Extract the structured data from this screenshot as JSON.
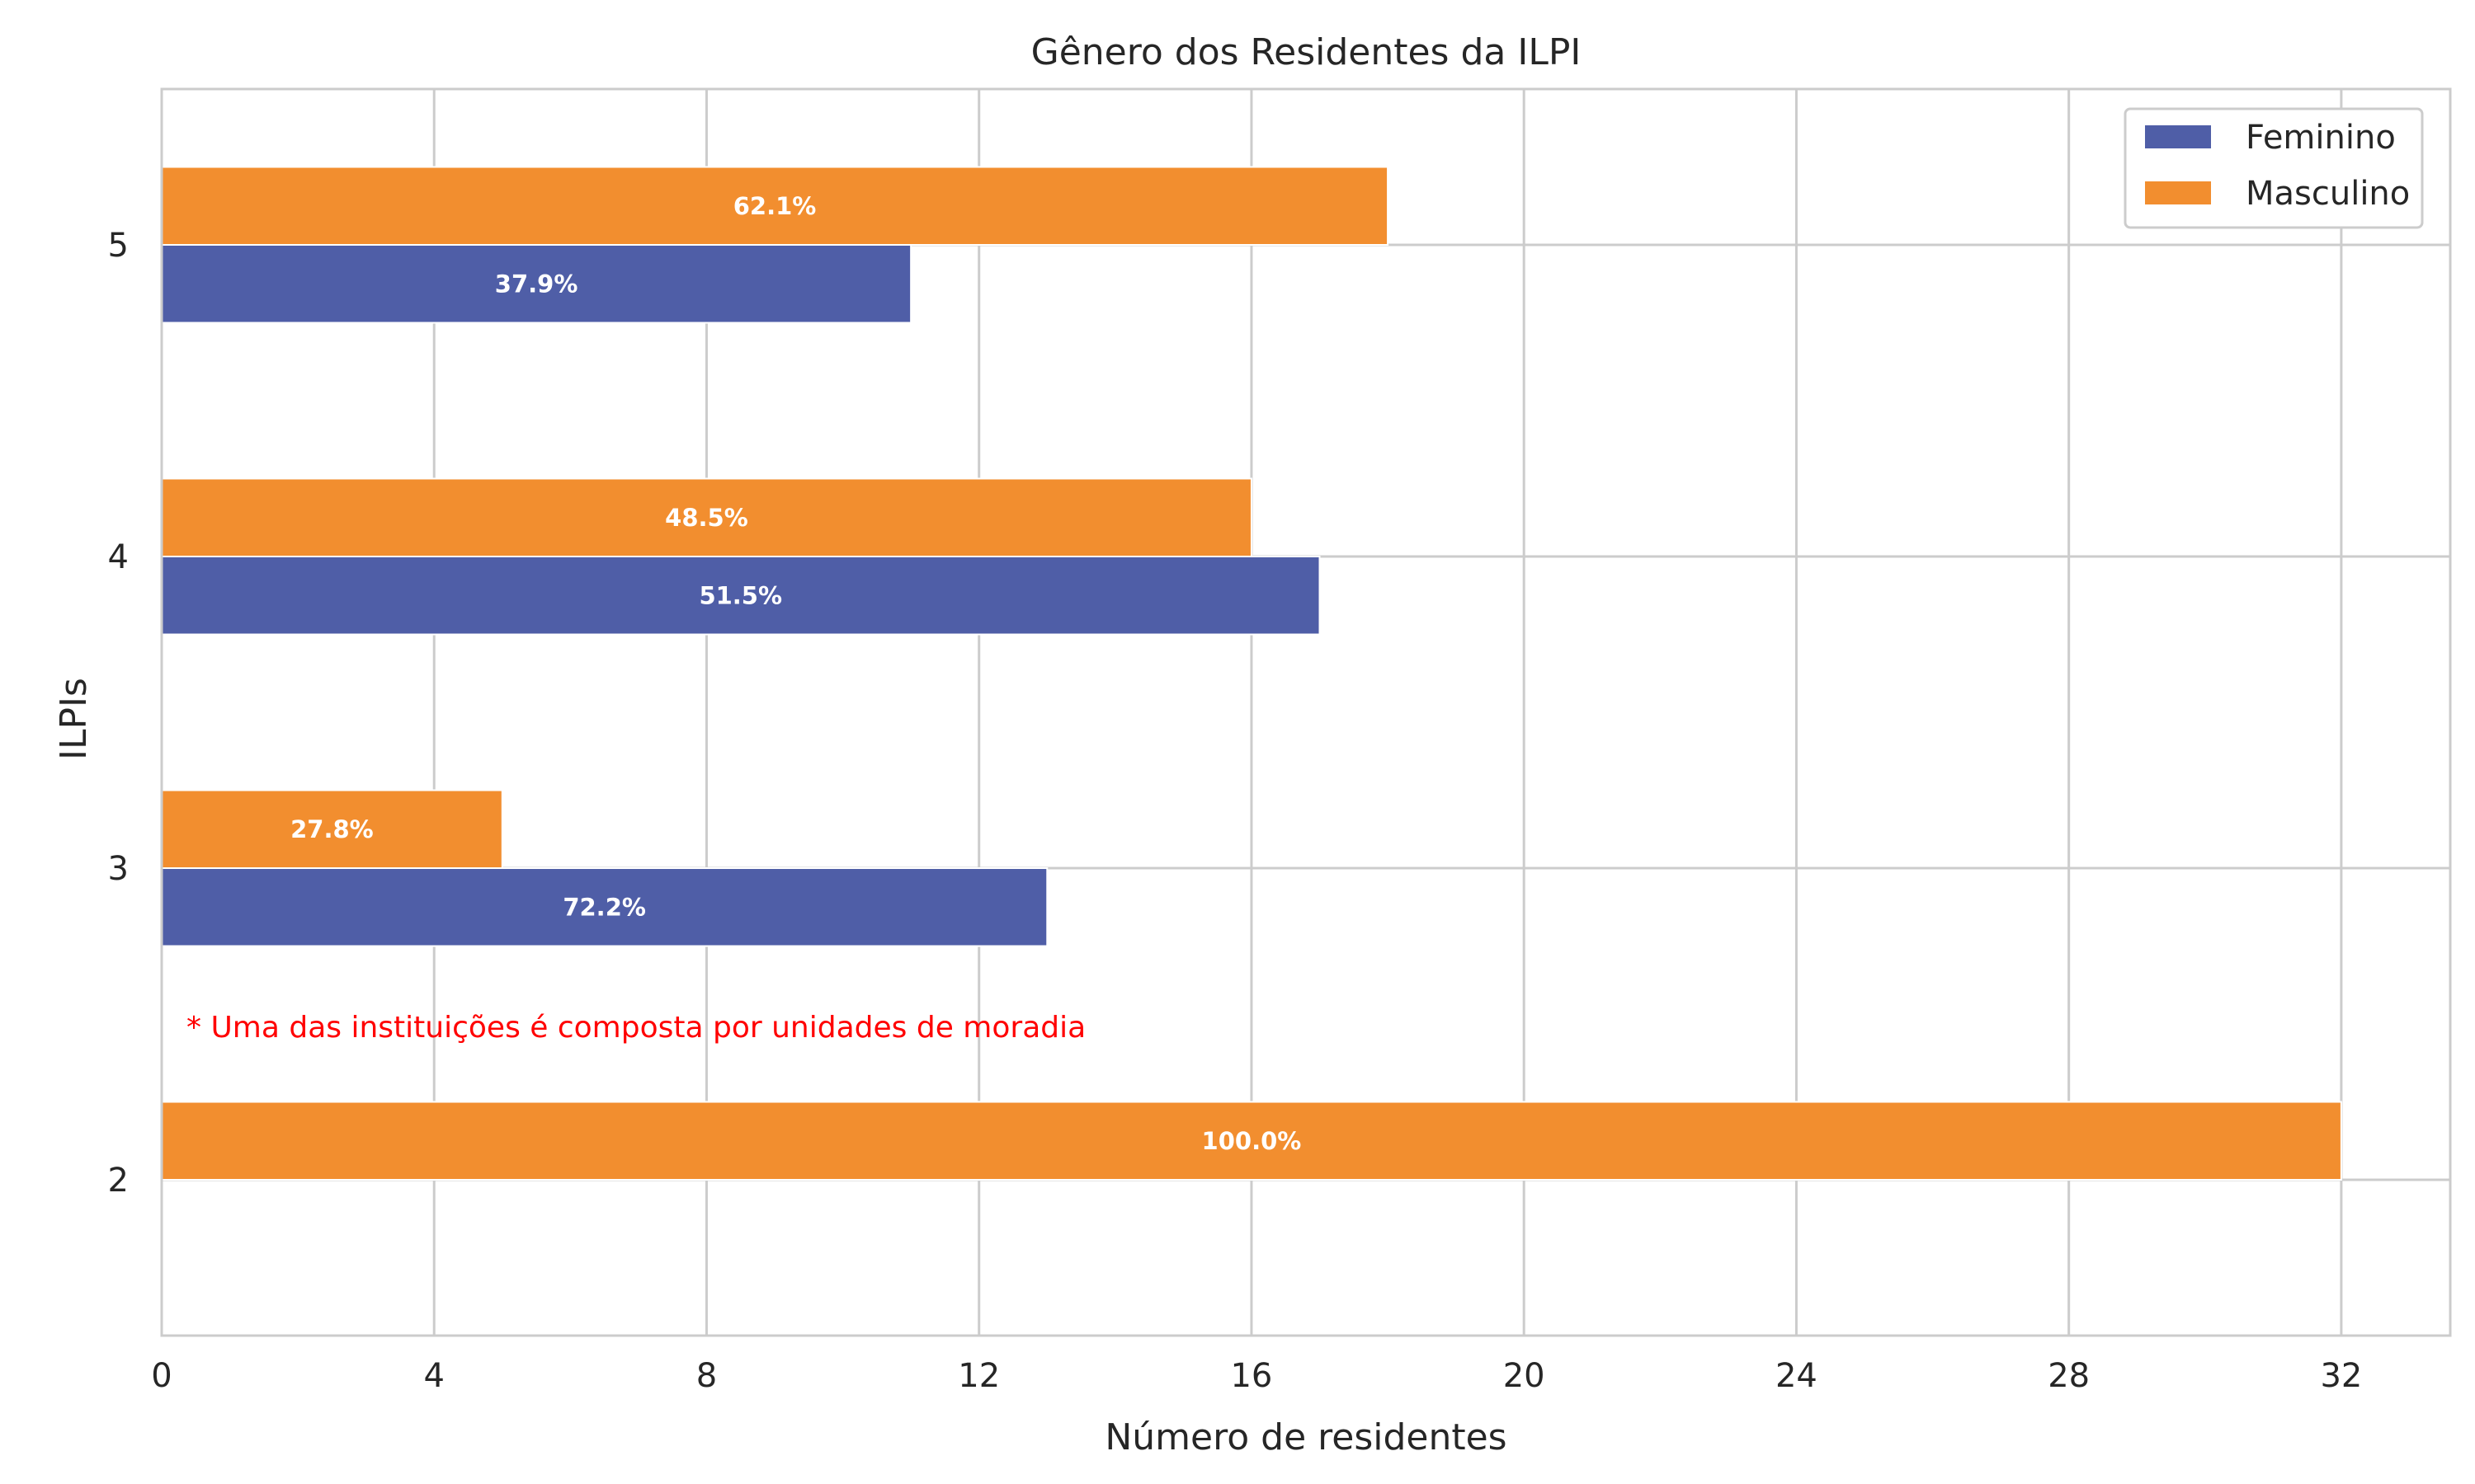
{
  "chart_data": {
    "type": "bar",
    "orientation": "horizontal",
    "title": "Gênero dos Residentes da ILPI",
    "xlabel": "Número de residentes",
    "ylabel": "ILPIs",
    "categories": [
      "2",
      "3",
      "4",
      "5"
    ],
    "xlim": [
      0,
      33.6
    ],
    "xticks": [
      0,
      4,
      8,
      12,
      16,
      20,
      24,
      28,
      32
    ],
    "grid": true,
    "legend_position": "top-right",
    "series": [
      {
        "name": "Feminino",
        "color": "#4f5ea7",
        "values": [
          0,
          13,
          17,
          11
        ],
        "labels": [
          "",
          "72.2%",
          "51.5%",
          "37.9%"
        ]
      },
      {
        "name": "Masculino",
        "color": "#f28e2f",
        "values": [
          32,
          5,
          16,
          18
        ],
        "labels": [
          "100.0%",
          "27.8%",
          "48.5%",
          "62.1%"
        ]
      }
    ],
    "annotation": "* Uma das instituições é composta por unidades de moradia"
  }
}
